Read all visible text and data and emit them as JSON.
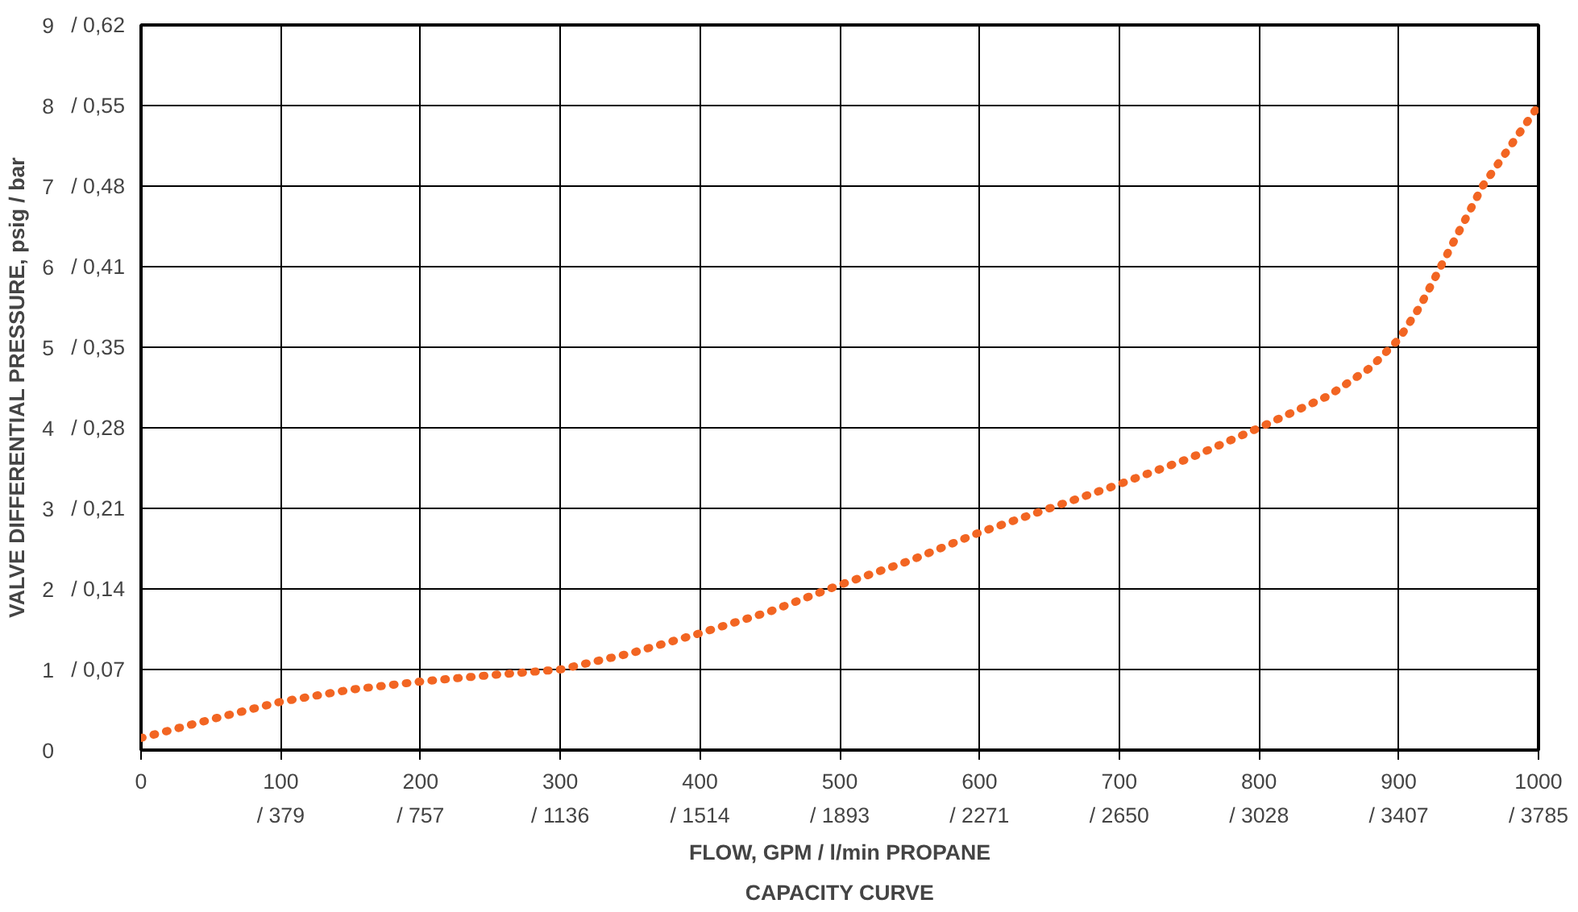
{
  "chart_data": {
    "type": "line",
    "title": "CAPACITY CURVE",
    "xlabel": "FLOW, GPM / l/min PROPANE",
    "ylabel": "VALVE DIFFERENTIAL PRESSURE, psig / bar",
    "x": [
      0,
      50,
      100,
      150,
      200,
      250,
      300,
      350,
      400,
      450,
      500,
      550,
      600,
      650,
      700,
      750,
      800,
      850,
      880,
      900,
      915,
      930,
      945,
      960,
      980,
      1000
    ],
    "series": [
      {
        "color": "#f26522",
        "values": [
          0.15,
          0.38,
          0.6,
          0.75,
          0.85,
          0.93,
          1.0,
          1.2,
          1.45,
          1.72,
          2.05,
          2.35,
          2.7,
          3.0,
          3.3,
          3.62,
          4.0,
          4.4,
          4.75,
          5.1,
          5.5,
          6.0,
          6.5,
          7.0,
          7.5,
          8.0
        ]
      }
    ],
    "xlim": [
      0,
      1000
    ],
    "ylim": [
      0,
      9
    ],
    "xticks": [
      0,
      100,
      200,
      300,
      400,
      500,
      600,
      700,
      800,
      900,
      1000
    ],
    "yticks": [
      0,
      1,
      2,
      3,
      4,
      5,
      6,
      7,
      8,
      9
    ],
    "x2lim": [
      0,
      3785.4
    ],
    "x2ticks": [
      {
        "value": 378.5,
        "label": "/ 379"
      },
      {
        "value": 757.1,
        "label": "/ 757"
      },
      {
        "value": 1135.6,
        "label": "/ 1136"
      },
      {
        "value": 1514.2,
        "label": "/ 1514"
      },
      {
        "value": 1892.7,
        "label": "/ 1893"
      },
      {
        "value": 2271.2,
        "label": "/ 2271"
      },
      {
        "value": 2649.8,
        "label": "/ 2650"
      },
      {
        "value": 3028.3,
        "label": "/ 3028"
      },
      {
        "value": 3406.9,
        "label": "/ 3407"
      },
      {
        "value": 3785.4,
        "label": "/ 3785"
      }
    ],
    "y2lim": [
      0,
      0.6205
    ],
    "y2ticks": [
      {
        "value": 0.0689,
        "label": "/ 0,07"
      },
      {
        "value": 0.1379,
        "label": "/ 0,14"
      },
      {
        "value": 0.2068,
        "label": "/ 0,21"
      },
      {
        "value": 0.2758,
        "label": "/ 0,28"
      },
      {
        "value": 0.345,
        "label": "/ 0,35"
      },
      {
        "value": 0.4137,
        "label": "/ 0,41"
      },
      {
        "value": 0.4826,
        "label": "/ 0,48"
      },
      {
        "value": 0.5516,
        "label": "/ 0,55"
      },
      {
        "value": 0.6205,
        "label": "/ 0,62"
      }
    ],
    "grid": true,
    "line_style": "dotted"
  }
}
